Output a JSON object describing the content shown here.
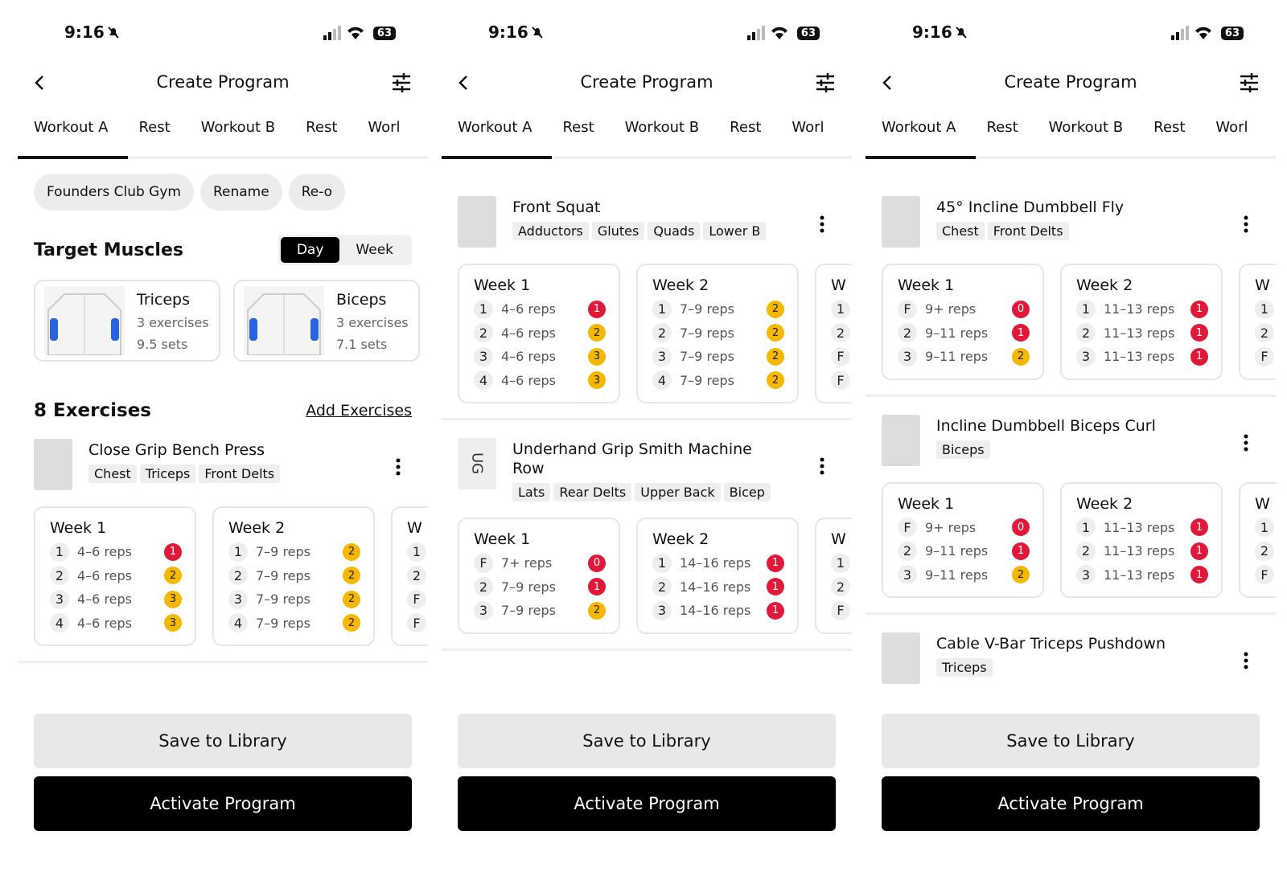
{
  "screens": [
    {
      "status": {
        "time": "9:16",
        "battery": "63"
      },
      "header": {
        "title": "Create Program"
      },
      "tabs": [
        "Workout A",
        "Rest",
        "Workout B",
        "Rest",
        "Worl"
      ],
      "chips": [
        "Founders Club Gym",
        "Rename",
        "Re-o"
      ],
      "target_muscles": {
        "title": "Target Muscles",
        "toggle": [
          "Day",
          "Week"
        ],
        "muscles": [
          {
            "name": "Triceps",
            "exercises": "3 exercises",
            "sets": "9.5 sets"
          },
          {
            "name": "Biceps",
            "exercises": "3 exercises",
            "sets": "7.1 sets"
          }
        ]
      },
      "exercises_header": {
        "count": "8 Exercises",
        "action": "Add Exercises"
      },
      "exercises": [
        {
          "name": "Close Grip Bench Press",
          "tags": [
            "Chest",
            "Triceps",
            "Front Delts"
          ],
          "weeks": [
            {
              "title": "Week 1",
              "sets": [
                {
                  "set": "1",
                  "reps": "4–6 reps",
                  "rir": "1"
                },
                {
                  "set": "2",
                  "reps": "4–6 reps",
                  "rir": "2"
                },
                {
                  "set": "3",
                  "reps": "4–6 reps",
                  "rir": "3"
                },
                {
                  "set": "4",
                  "reps": "4–6 reps",
                  "rir": "3"
                }
              ]
            },
            {
              "title": "Week 2",
              "sets": [
                {
                  "set": "1",
                  "reps": "7–9 reps",
                  "rir": "2"
                },
                {
                  "set": "2",
                  "reps": "7–9 reps",
                  "rir": "2"
                },
                {
                  "set": "3",
                  "reps": "7–9 reps",
                  "rir": "2"
                },
                {
                  "set": "4",
                  "reps": "7–9 reps",
                  "rir": "2"
                }
              ]
            },
            {
              "title": "W",
              "sets": [
                {
                  "set": "1"
                },
                {
                  "set": "2"
                },
                {
                  "set": "F"
                },
                {
                  "set": "F"
                }
              ]
            }
          ]
        }
      ],
      "buttons": [
        "Save to Library",
        "Activate Program"
      ]
    },
    {
      "status": {
        "time": "9:16",
        "battery": "63"
      },
      "header": {
        "title": "Create Program"
      },
      "tabs": [
        "Workout A",
        "Rest",
        "Workout B",
        "Rest",
        "Worl"
      ],
      "exercises": [
        {
          "name": "Front Squat",
          "tags": [
            "Adductors",
            "Glutes",
            "Quads",
            "Lower B"
          ],
          "weeks": [
            {
              "title": "Week 1",
              "sets": [
                {
                  "set": "1",
                  "reps": "4–6 reps",
                  "rir": "1"
                },
                {
                  "set": "2",
                  "reps": "4–6 reps",
                  "rir": "2"
                },
                {
                  "set": "3",
                  "reps": "4–6 reps",
                  "rir": "3"
                },
                {
                  "set": "4",
                  "reps": "4–6 reps",
                  "rir": "3"
                }
              ]
            },
            {
              "title": "Week 2",
              "sets": [
                {
                  "set": "1",
                  "reps": "7–9 reps",
                  "rir": "2"
                },
                {
                  "set": "2",
                  "reps": "7–9 reps",
                  "rir": "2"
                },
                {
                  "set": "3",
                  "reps": "7–9 reps",
                  "rir": "2"
                },
                {
                  "set": "4",
                  "reps": "7–9 reps",
                  "rir": "2"
                }
              ]
            },
            {
              "title": "W",
              "sets": [
                {
                  "set": "1"
                },
                {
                  "set": "2"
                },
                {
                  "set": "F"
                },
                {
                  "set": "F"
                }
              ]
            }
          ]
        },
        {
          "name": "Underhand Grip Smith Machine Row",
          "thumb_text": "UG",
          "tags": [
            "Lats",
            "Rear Delts",
            "Upper Back",
            "Bicep"
          ],
          "weeks": [
            {
              "title": "Week 1",
              "sets": [
                {
                  "set": "F",
                  "reps": "7+ reps",
                  "rir": "0"
                },
                {
                  "set": "2",
                  "reps": "7–9 reps",
                  "rir": "1"
                },
                {
                  "set": "3",
                  "reps": "7–9 reps",
                  "rir": "2"
                }
              ]
            },
            {
              "title": "Week 2",
              "sets": [
                {
                  "set": "1",
                  "reps": "14–16 reps",
                  "rir": "1"
                },
                {
                  "set": "2",
                  "reps": "14–16 reps",
                  "rir": "1"
                },
                {
                  "set": "3",
                  "reps": "14–16 reps",
                  "rir": "1"
                }
              ]
            },
            {
              "title": "W",
              "sets": [
                {
                  "set": "1"
                },
                {
                  "set": "2"
                },
                {
                  "set": "F"
                }
              ]
            }
          ]
        }
      ],
      "buttons": [
        "Save to Library",
        "Activate Program"
      ]
    },
    {
      "status": {
        "time": "9:16",
        "battery": "63"
      },
      "header": {
        "title": "Create Program"
      },
      "tabs": [
        "Workout A",
        "Rest",
        "Workout B",
        "Rest",
        "Worl"
      ],
      "exercises": [
        {
          "name": "45° Incline Dumbbell Fly",
          "tags": [
            "Chest",
            "Front Delts"
          ],
          "weeks": [
            {
              "title": "Week 1",
              "sets": [
                {
                  "set": "F",
                  "reps": "9+ reps",
                  "rir": "0"
                },
                {
                  "set": "2",
                  "reps": "9–11 reps",
                  "rir": "1"
                },
                {
                  "set": "3",
                  "reps": "9–11 reps",
                  "rir": "2"
                }
              ]
            },
            {
              "title": "Week 2",
              "sets": [
                {
                  "set": "1",
                  "reps": "11–13 reps",
                  "rir": "1"
                },
                {
                  "set": "2",
                  "reps": "11–13 reps",
                  "rir": "1"
                },
                {
                  "set": "3",
                  "reps": "11–13 reps",
                  "rir": "1"
                }
              ]
            },
            {
              "title": "W",
              "sets": [
                {
                  "set": "1"
                },
                {
                  "set": "2"
                },
                {
                  "set": "F"
                }
              ]
            }
          ]
        },
        {
          "name": "Incline Dumbbell Biceps Curl",
          "tags": [
            "Biceps"
          ],
          "weeks": [
            {
              "title": "Week 1",
              "sets": [
                {
                  "set": "F",
                  "reps": "9+ reps",
                  "rir": "0"
                },
                {
                  "set": "2",
                  "reps": "9–11 reps",
                  "rir": "1"
                },
                {
                  "set": "3",
                  "reps": "9–11 reps",
                  "rir": "2"
                }
              ]
            },
            {
              "title": "Week 2",
              "sets": [
                {
                  "set": "1",
                  "reps": "11–13 reps",
                  "rir": "1"
                },
                {
                  "set": "2",
                  "reps": "11–13 reps",
                  "rir": "1"
                },
                {
                  "set": "3",
                  "reps": "11–13 reps",
                  "rir": "1"
                }
              ]
            },
            {
              "title": "W",
              "sets": [
                {
                  "set": "1"
                },
                {
                  "set": "2"
                },
                {
                  "set": "F"
                }
              ]
            }
          ]
        },
        {
          "name": "Cable V-Bar Triceps Pushdown",
          "tags": [
            "Triceps"
          ],
          "weeks": []
        }
      ],
      "buttons": [
        "Save to Library",
        "Activate Program"
      ]
    }
  ]
}
